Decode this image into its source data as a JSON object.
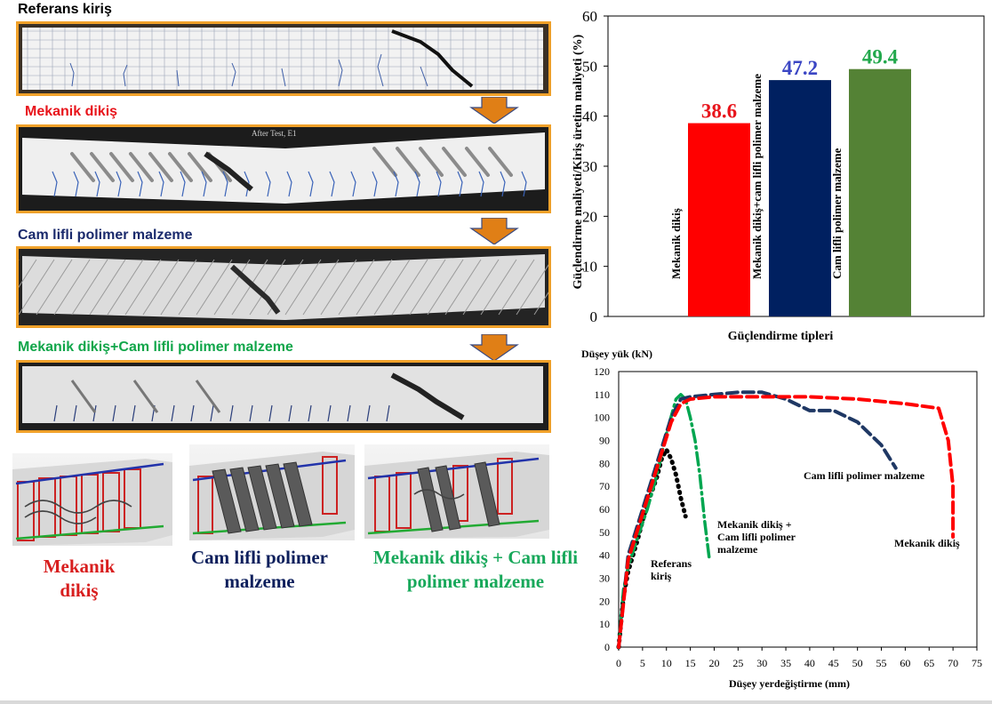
{
  "beam_panels": [
    {
      "label": "Referans kiriş",
      "color": "#000000"
    },
    {
      "label": "Mekanik dikiş",
      "color": "#e8141b"
    },
    {
      "label": "Cam lifli polimer malzeme",
      "color": "#1a2a6c"
    },
    {
      "label": "Mekanik dikiş+Cam lifli polimer malzeme",
      "color": "#11a64a"
    }
  ],
  "photo_text": "After Test, E1",
  "renders": [
    {
      "caption": "Mekanik dikiş",
      "color": "#d81e1e"
    },
    {
      "caption": "Cam lifli polimer malzeme",
      "color": "#0d1f5c"
    },
    {
      "caption": "Mekanik dikiş + Cam lifli polimer malzeme",
      "color": "#17a85a"
    }
  ],
  "chart_data": [
    {
      "type": "bar",
      "categories": [
        "Mekanik dikiş",
        "Mekanik dikiş+cam lifli polimer malzeme",
        "Cam lifli polimer malzeme"
      ],
      "values": [
        38.6,
        47.2,
        49.4
      ],
      "value_labels": [
        "38.6",
        "47.2",
        "49.4"
      ],
      "colors": [
        "#ff0000",
        "#002060",
        "#548235"
      ],
      "label_colors": [
        "#e8141b",
        "#3b46c4",
        "#22a84c"
      ],
      "ylabel": "Güçlendirme maliyeti/Kiriş üretim maliyeti (%)",
      "xlabel": "Güçlendirme tipleri",
      "ylim": [
        0,
        60
      ],
      "yticks": [
        0,
        10,
        20,
        30,
        40,
        50,
        60
      ],
      "grid": false,
      "legend": "none"
    },
    {
      "type": "line",
      "xlabel": "Düşey yerdeğiştirme (mm)",
      "ylabel": "Düşey yük (kN)",
      "xlim": [
        0,
        75
      ],
      "ylim": [
        0,
        120
      ],
      "xticks": [
        0,
        5,
        10,
        15,
        20,
        25,
        30,
        35,
        40,
        45,
        50,
        55,
        60,
        65,
        70,
        75
      ],
      "yticks": [
        0,
        10,
        20,
        30,
        40,
        50,
        60,
        70,
        80,
        90,
        100,
        110,
        120
      ],
      "grid": false,
      "series": [
        {
          "name": "Referans kiriş",
          "color": "#000000",
          "style": "dotted",
          "x": [
            0,
            1,
            2,
            3,
            4,
            5,
            6,
            7,
            8,
            9,
            10,
            11,
            12,
            13,
            14
          ],
          "y": [
            0,
            22,
            33,
            40,
            47,
            55,
            62,
            68,
            74,
            82,
            86,
            82,
            75,
            65,
            57
          ]
        },
        {
          "name": "Mekanik dikiş + Cam lifli polimer malzeme",
          "color": "#00a650",
          "style": "dashdot",
          "x": [
            0,
            1,
            2,
            4,
            6,
            8,
            10,
            12,
            13,
            14,
            15,
            16,
            17,
            18,
            19
          ],
          "y": [
            0,
            25,
            35,
            48,
            60,
            75,
            93,
            108,
            110,
            108,
            100,
            90,
            75,
            55,
            38
          ]
        },
        {
          "name": "Cam lifli polimer malzeme",
          "color": "#1f3864",
          "style": "dashed",
          "x": [
            0,
            2,
            5,
            8,
            11,
            13,
            15,
            20,
            25,
            30,
            35,
            40,
            45,
            50,
            55,
            58
          ],
          "y": [
            0,
            40,
            60,
            80,
            100,
            108,
            109,
            110,
            111,
            111,
            108,
            103,
            103,
            98,
            88,
            78
          ]
        },
        {
          "name": "Mekanik dikiş",
          "color": "#ff0000",
          "style": "dashed",
          "x": [
            0,
            2,
            5,
            8,
            11,
            13,
            15,
            20,
            30,
            40,
            50,
            60,
            67,
            69,
            70,
            70
          ],
          "y": [
            0,
            38,
            58,
            78,
            98,
            106,
            108,
            109,
            109,
            109,
            108,
            106,
            104,
            90,
            70,
            48
          ]
        }
      ],
      "annotations": [
        {
          "text": "Referans\nkiriş",
          "color": "#000000"
        },
        {
          "text": "Mekanik dikiş +\nCam lifli polimer\nmalzeme",
          "color": "#000000"
        },
        {
          "text": "Cam lifli polimer malzeme",
          "color": "#000000"
        },
        {
          "text": "Mekanik dikiş",
          "color": "#000000"
        }
      ]
    }
  ]
}
